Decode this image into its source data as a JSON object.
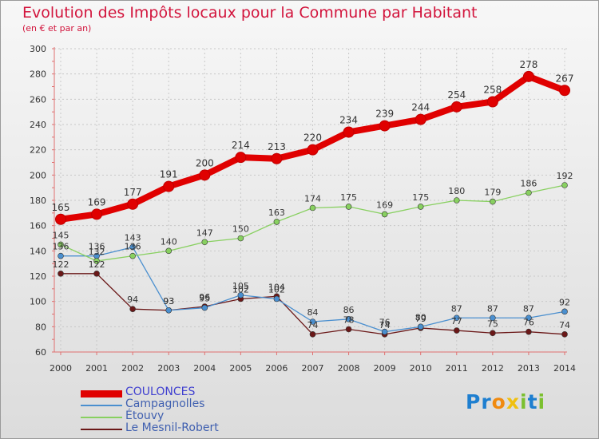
{
  "chart_data": {
    "type": "line",
    "title": "Evolution des Impôts locaux pour la Commune par Habitant",
    "subtitle": "(en € et par an)",
    "xlabel": "",
    "ylabel": "",
    "x": [
      "2000",
      "2001",
      "2002",
      "2003",
      "2004",
      "2005",
      "2006",
      "2007",
      "2008",
      "2009",
      "2010",
      "2011",
      "2012",
      "2013",
      "2014"
    ],
    "ylim": [
      60,
      300
    ],
    "yticks": [
      "60",
      "80",
      "100",
      "120",
      "140",
      "160",
      "180",
      "200",
      "220",
      "240",
      "260",
      "280",
      "300"
    ],
    "grid": true,
    "legend_position": "bottom-left",
    "series": [
      {
        "name": "COULONCES",
        "color": "#e00000",
        "values": [
          165,
          169,
          177,
          191,
          200,
          214,
          213,
          220,
          234,
          239,
          244,
          254,
          258,
          278,
          267
        ]
      },
      {
        "name": "Campagnolles",
        "color": "#4a8fcf",
        "values": [
          136,
          136,
          143,
          93,
          95,
          105,
          102,
          84,
          86,
          76,
          80,
          87,
          87,
          87,
          92
        ]
      },
      {
        "name": "Étouvy",
        "color": "#88d060",
        "values": [
          145,
          132,
          136,
          140,
          147,
          150,
          163,
          174,
          175,
          169,
          175,
          180,
          179,
          186,
          192
        ]
      },
      {
        "name": "Le Mesnil-Robert",
        "color": "#6b1818",
        "values": [
          122,
          122,
          94,
          93,
          96,
          102,
          104,
          74,
          78,
          74,
          79,
          77,
          75,
          76,
          74
        ]
      }
    ]
  },
  "logo": {
    "text": "Proxiti",
    "letters": [
      {
        "ch": "P",
        "color": "#1e7fd0"
      },
      {
        "ch": "r",
        "color": "#1e7fd0"
      },
      {
        "ch": "o",
        "color": "#f08a10"
      },
      {
        "ch": "x",
        "color": "#f0c010"
      },
      {
        "ch": "i",
        "color": "#7cc030"
      },
      {
        "ch": "t",
        "color": "#1e7fd0"
      },
      {
        "ch": "i",
        "color": "#7cc030"
      }
    ]
  }
}
